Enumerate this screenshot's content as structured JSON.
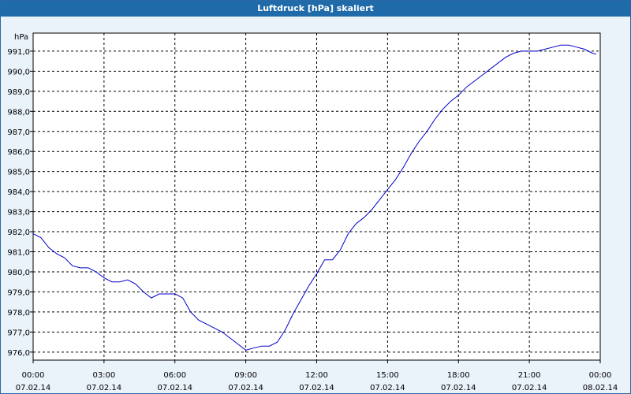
{
  "window": {
    "title": "Luftdruck [hPa] skaliert"
  },
  "chart_data": {
    "type": "line",
    "title": "Luftdruck [hPa] skaliert",
    "ylabel": "hPa",
    "xlabel": "",
    "xlim": [
      "07.02.14 00:00",
      "08.02.14 00:00"
    ],
    "ylim": [
      975.6,
      991.9
    ],
    "grid": true,
    "y_ticks": [
      "976,0",
      "977,0",
      "978,0",
      "979,0",
      "980,0",
      "981,0",
      "982,0",
      "983,0",
      "984,0",
      "985,0",
      "986,0",
      "987,0",
      "988,0",
      "989,0",
      "990,0",
      "991,0"
    ],
    "x_ticks": [
      {
        "time": "00:00",
        "date": "07.02.14"
      },
      {
        "time": "03:00",
        "date": "07.02.14"
      },
      {
        "time": "06:00",
        "date": "07.02.14"
      },
      {
        "time": "09:00",
        "date": "07.02.14"
      },
      {
        "time": "12:00",
        "date": "07.02.14"
      },
      {
        "time": "15:00",
        "date": "07.02.14"
      },
      {
        "time": "18:00",
        "date": "07.02.14"
      },
      {
        "time": "21:00",
        "date": "07.02.14"
      },
      {
        "time": "00:00",
        "date": "08.02.14"
      }
    ],
    "series": [
      {
        "color": "#0000cc",
        "x": [
          "07.02.14 00:00",
          "07.02.14 00:20",
          "07.02.14 00:40",
          "07.02.14 01:00",
          "07.02.14 01:20",
          "07.02.14 01:40",
          "07.02.14 02:00",
          "07.02.14 02:20",
          "07.02.14 02:40",
          "07.02.14 03:00",
          "07.02.14 03:20",
          "07.02.14 03:40",
          "07.02.14 04:00",
          "07.02.14 04:20",
          "07.02.14 04:40",
          "07.02.14 05:00",
          "07.02.14 05:20",
          "07.02.14 05:40",
          "07.02.14 06:00",
          "07.02.14 06:20",
          "07.02.14 06:40",
          "07.02.14 07:00",
          "07.02.14 07:20",
          "07.02.14 07:40",
          "07.02.14 08:00",
          "07.02.14 08:20",
          "07.02.14 08:40",
          "07.02.14 09:00",
          "07.02.14 09:20",
          "07.02.14 09:40",
          "07.02.14 10:00",
          "07.02.14 10:20",
          "07.02.14 10:40",
          "07.02.14 11:00",
          "07.02.14 11:20",
          "07.02.14 11:40",
          "07.02.14 12:00",
          "07.02.14 12:20",
          "07.02.14 12:40",
          "07.02.14 13:00",
          "07.02.14 13:20",
          "07.02.14 13:40",
          "07.02.14 14:00",
          "07.02.14 14:20",
          "07.02.14 14:40",
          "07.02.14 15:00",
          "07.02.14 15:20",
          "07.02.14 15:40",
          "07.02.14 16:00",
          "07.02.14 16:20",
          "07.02.14 16:40",
          "07.02.14 17:00",
          "07.02.14 17:20",
          "07.02.14 17:40",
          "07.02.14 18:00",
          "07.02.14 18:20",
          "07.02.14 18:40",
          "07.02.14 19:00",
          "07.02.14 19:20",
          "07.02.14 19:40",
          "07.02.14 20:00",
          "07.02.14 20:20",
          "07.02.14 20:40",
          "07.02.14 21:00",
          "07.02.14 21:20",
          "07.02.14 21:40",
          "07.02.14 22:00",
          "07.02.14 22:20",
          "07.02.14 22:40",
          "07.02.14 23:00",
          "07.02.14 23:20",
          "07.02.14 23:40",
          "07.02.14 23:50"
        ],
        "values": [
          981.9,
          981.7,
          981.2,
          980.9,
          980.7,
          980.3,
          980.2,
          980.2,
          980.0,
          979.7,
          979.5,
          979.5,
          979.6,
          979.4,
          979.0,
          978.7,
          978.9,
          978.9,
          978.9,
          978.7,
          978.0,
          977.6,
          977.4,
          977.2,
          977.0,
          976.7,
          976.4,
          976.1,
          976.2,
          976.3,
          976.3,
          976.5,
          977.1,
          977.9,
          978.6,
          979.3,
          979.9,
          980.6,
          980.6,
          981.1,
          981.9,
          982.4,
          982.7,
          983.1,
          983.6,
          984.1,
          984.6,
          985.2,
          985.9,
          986.5,
          987.0,
          987.6,
          988.1,
          988.5,
          988.8,
          989.2,
          989.5,
          989.8,
          990.1,
          990.4,
          990.7,
          990.9,
          991.0,
          991.0,
          991.0,
          991.1,
          991.2,
          991.3,
          991.3,
          991.2,
          991.1,
          990.9,
          990.85
        ]
      }
    ]
  }
}
